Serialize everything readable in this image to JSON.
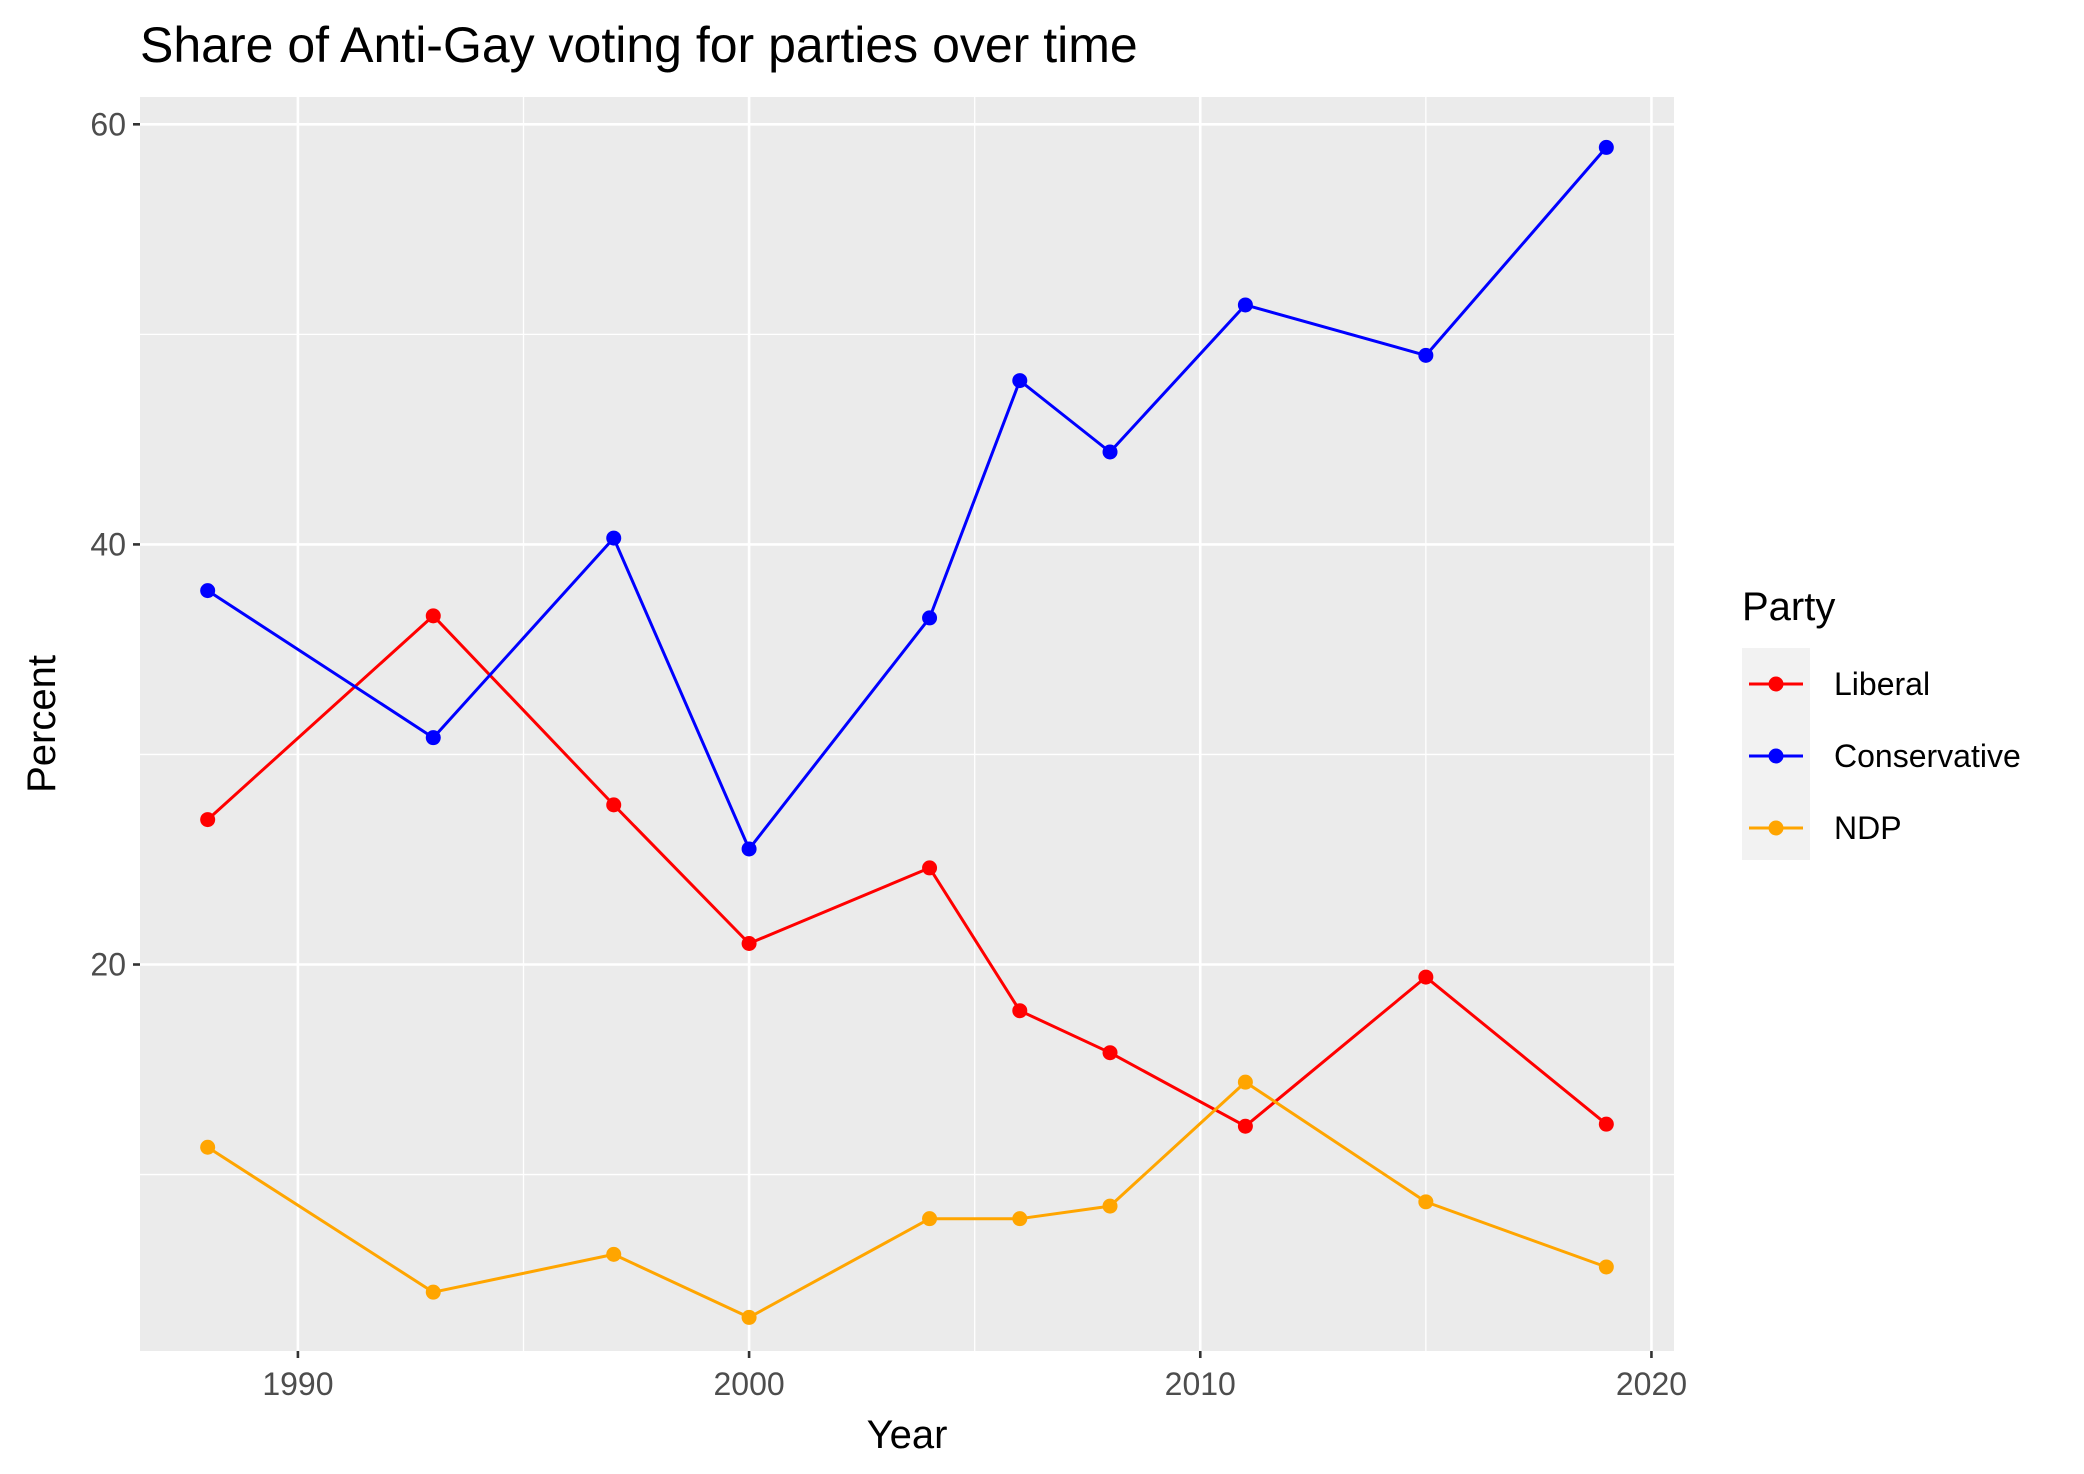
{
  "chart_data": {
    "type": "line",
    "title": "Share of Anti-Gay voting for parties over time",
    "xlabel": "Year",
    "ylabel": "Percent",
    "xlim": [
      1986.5,
      2020.5
    ],
    "ylim": [
      1.6,
      61.3
    ],
    "x_ticks": [
      1990,
      2000,
      2010,
      2020
    ],
    "y_ticks": [
      20,
      40,
      60
    ],
    "grid": true,
    "legend": {
      "title": "Party",
      "position": "right"
    },
    "x": [
      1988,
      1993,
      1997,
      2000,
      2004,
      2006,
      2008,
      2011,
      2015,
      2019
    ],
    "series": [
      {
        "name": "Liberal",
        "color": "#ff0000",
        "values": [
          26.9,
          36.6,
          27.6,
          21.0,
          24.6,
          17.8,
          15.8,
          12.3,
          19.4,
          12.4
        ]
      },
      {
        "name": "Conservative",
        "color": "#0000ff",
        "values": [
          37.8,
          30.8,
          40.3,
          25.5,
          36.5,
          47.8,
          44.4,
          51.4,
          49.0,
          58.9
        ]
      },
      {
        "name": "NDP",
        "color": "#ffa500",
        "values": [
          11.3,
          4.4,
          6.2,
          3.2,
          7.9,
          7.9,
          8.5,
          14.4,
          8.7,
          5.6
        ]
      }
    ]
  }
}
